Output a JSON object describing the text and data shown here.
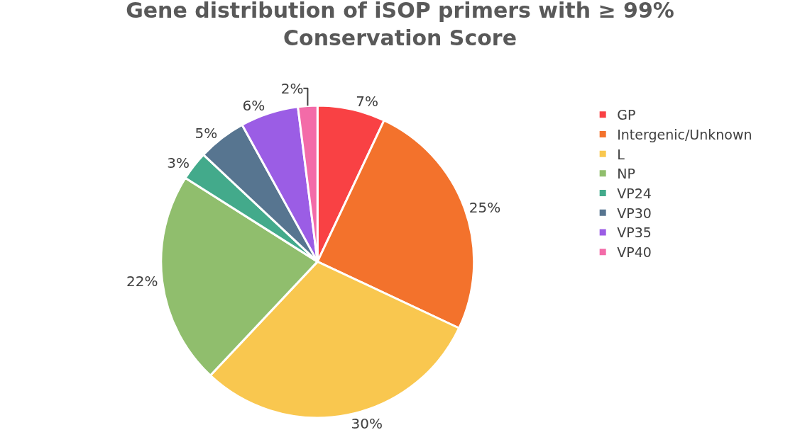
{
  "chart_data": {
    "type": "pie",
    "title": "Gene distribution of iSOP primers with ≥ 99%\nConservation Score",
    "categories": [
      "GP",
      "Intergenic/Unknown",
      "L",
      "NP",
      "VP24",
      "VP30",
      "VP35",
      "VP40"
    ],
    "values": [
      7,
      25,
      30,
      22,
      3,
      5,
      6,
      2
    ],
    "value_labels": [
      "7%",
      "25%",
      "30%",
      "22%",
      "3%",
      "5%",
      "6%",
      "2%"
    ],
    "colors": [
      "#f94144",
      "#f3722c",
      "#f9c74f",
      "#90be6d",
      "#43aa8b",
      "#577590",
      "#9b5de5",
      "#f36ba8"
    ],
    "legend": "right"
  }
}
